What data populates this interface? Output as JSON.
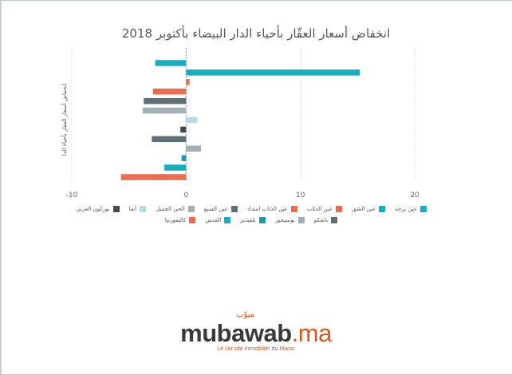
{
  "chart_data": {
    "type": "bar",
    "orientation": "horizontal",
    "title": "انخفاض أسعار العقّار بأحياء الدار البيضاء بأكتوبر 2018",
    "ylabel": "انخفاض أسعار العقار بأحياء الدا",
    "xlabel": "",
    "xlim": [
      -10,
      20
    ],
    "x_ticks": [
      "-10",
      "0",
      "10",
      "20"
    ],
    "grid": true,
    "legend_position": "bottom",
    "series": [
      {
        "name": "عين برجة",
        "value": -2.7,
        "color": "#16aec1"
      },
      {
        "name": "عين الشق",
        "value": 15.2,
        "color": "#16aec1"
      },
      {
        "name": "عين الذئاب",
        "value": 0.3,
        "color": "#ec6c52"
      },
      {
        "name": "عين الذئاب امتداد",
        "value": -2.9,
        "color": "#ec6c52"
      },
      {
        "name": "عين السبع",
        "value": -3.7,
        "color": "#5c7076"
      },
      {
        "name": "الحي الجميل",
        "value": -3.8,
        "color": "#a3b0b4"
      },
      {
        "name": "أنفا",
        "value": 1.0,
        "color": "#b7dce7"
      },
      {
        "name": "بوركون الغربي",
        "value": -0.5,
        "color": "#404c50"
      },
      {
        "name": "باشكو",
        "value": -3.0,
        "color": "#5c7076"
      },
      {
        "name": "بوسيجور",
        "value": 1.3,
        "color": "#a3b0b4"
      },
      {
        "name": "بلفيدير",
        "value": -0.4,
        "color": "#1f9aab"
      },
      {
        "name": "القدس",
        "value": -1.9,
        "color": "#16aec1"
      },
      {
        "name": "كاليفورنيا",
        "value": -5.7,
        "color": "#ec6c52"
      }
    ]
  },
  "branding": {
    "logo_word": "mubawab",
    "logo_suffix": ".ma",
    "logo_arabic": "مبوّب",
    "tagline": "Le 1er site immobilier du Maroc"
  }
}
